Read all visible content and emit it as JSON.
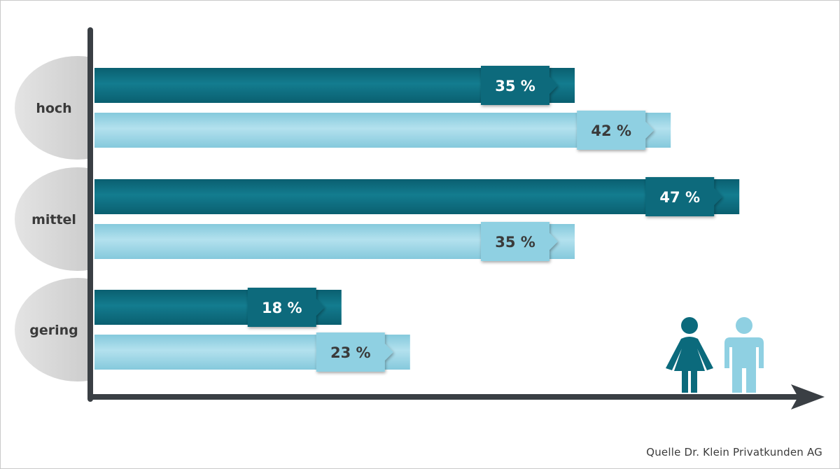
{
  "chart_data": {
    "type": "bar",
    "orientation": "horizontal",
    "categories": [
      "hoch",
      "mittel",
      "gering"
    ],
    "series": [
      {
        "values": [
          35,
          47,
          18
        ],
        "color": "#0b6a7c",
        "label_color": "#ffffff",
        "icon": "woman-icon"
      },
      {
        "values": [
          42,
          35,
          23
        ],
        "color": "#8fd0e2",
        "label_color": "#3a3a3a",
        "icon": "man-icon"
      }
    ],
    "value_suffix": " %",
    "xlim": [
      0,
      60
    ],
    "grid": false,
    "legend": "bottom-right"
  },
  "source": "Quelle Dr. Klein Privatkunden AG",
  "colors": {
    "axis": "#3a3f44",
    "category_bubble": "#d0d0d0",
    "female": "#0b6a7c",
    "male": "#8fd0e2"
  }
}
